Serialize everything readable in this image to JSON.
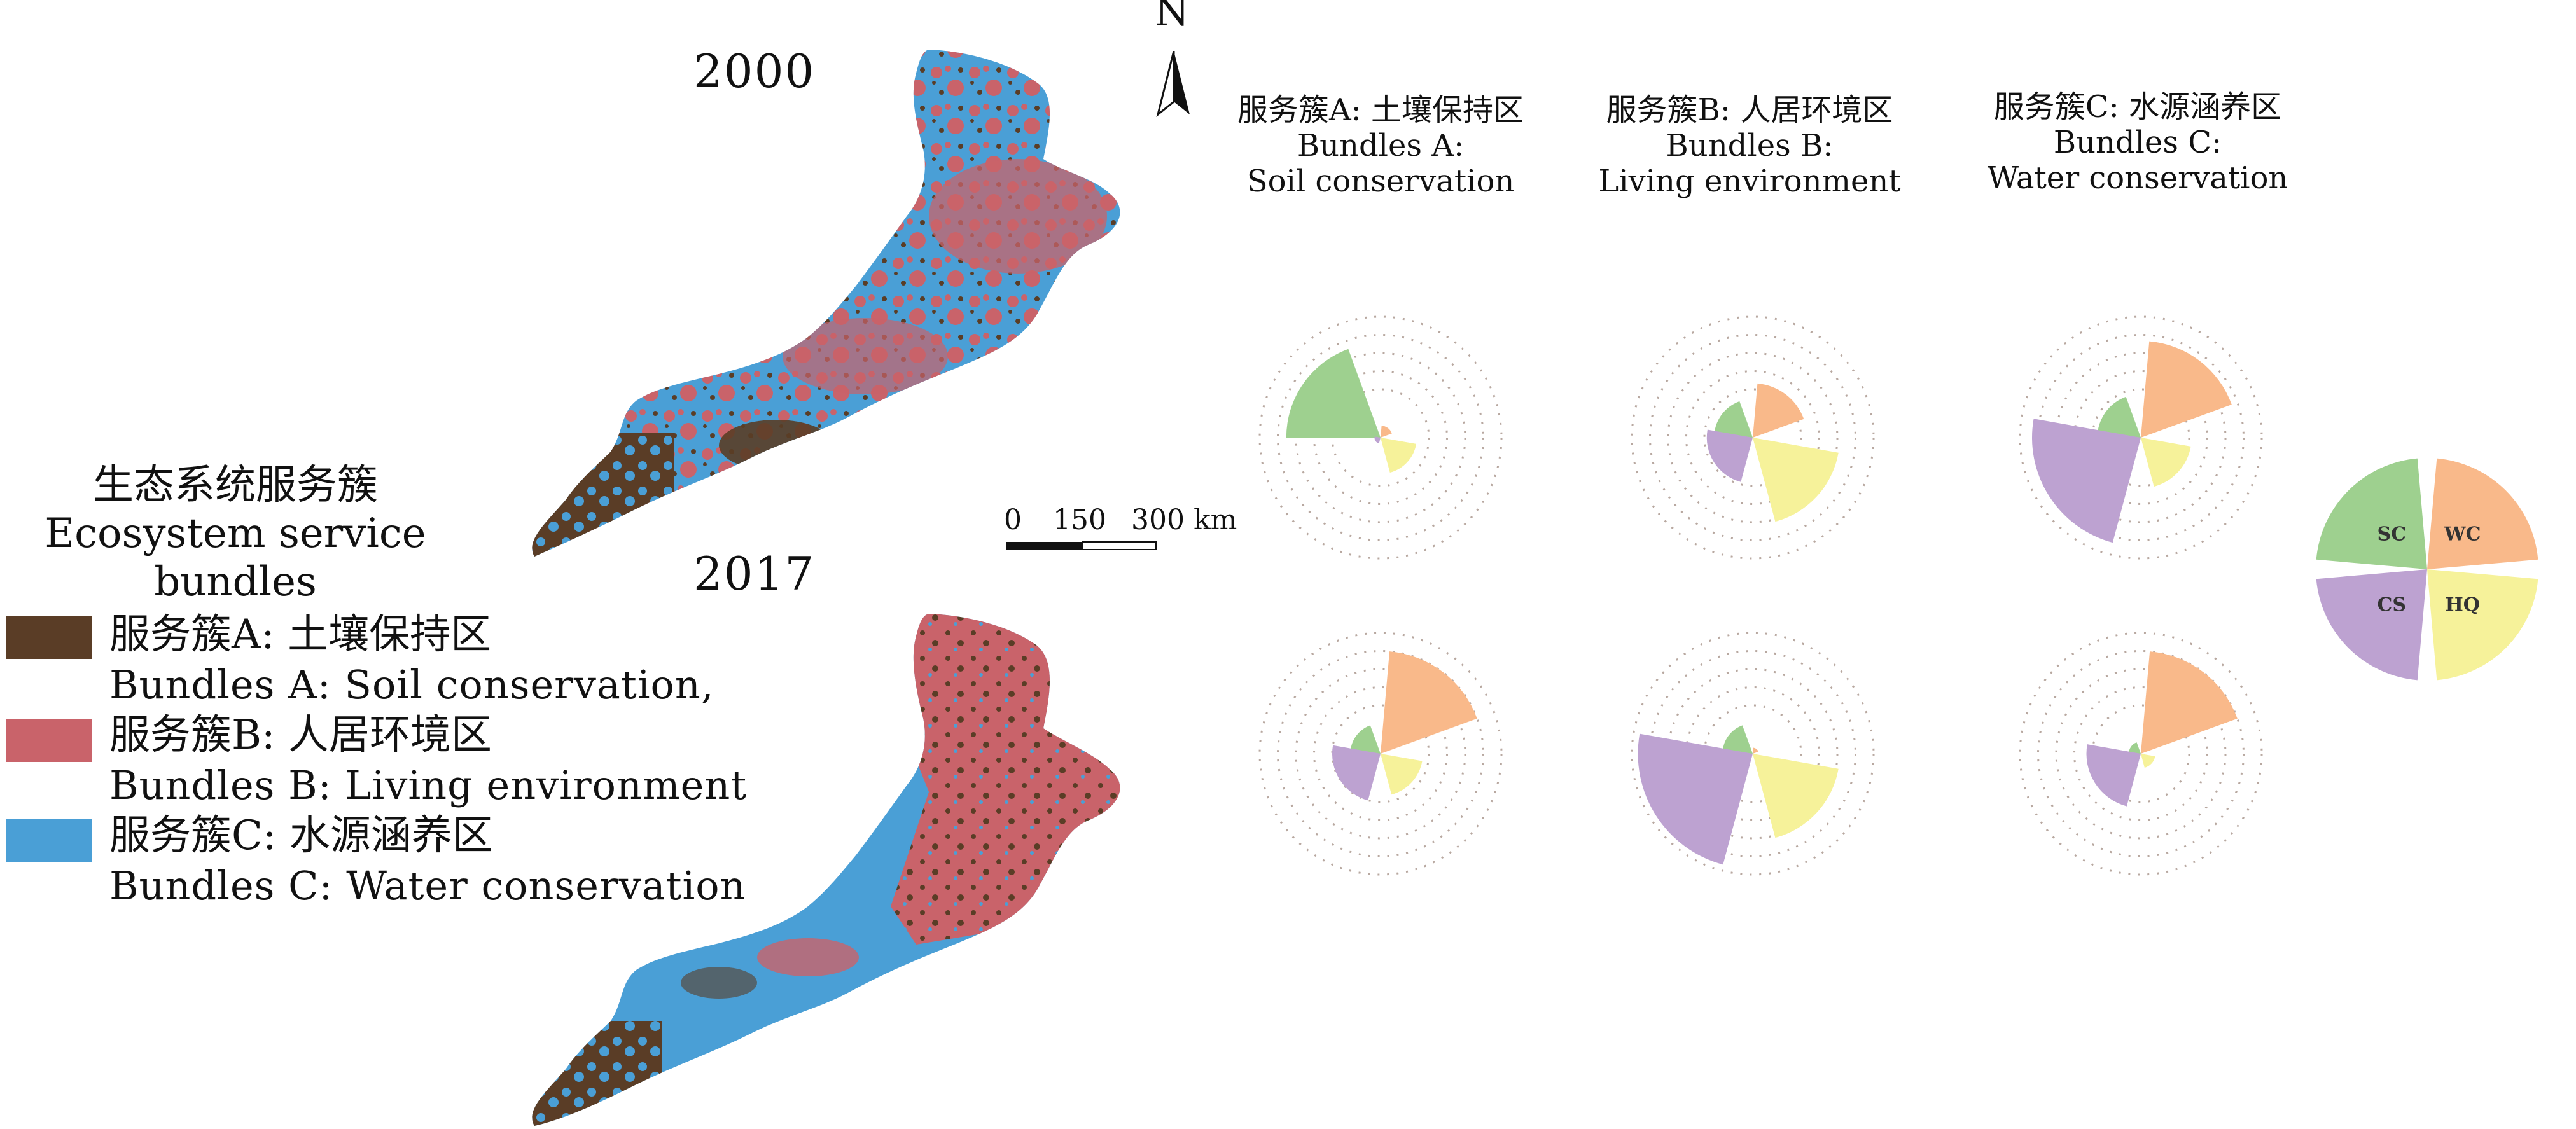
{
  "maps": {
    "top_year": "2000",
    "bottom_year": "2017",
    "north_label": "N",
    "scale": {
      "ticks": [
        "0",
        "150",
        "300 km"
      ]
    },
    "colors": {
      "bundle_a": "#5a3d26",
      "bundle_b": "#c9636a",
      "bundle_c": "#4a9fd6"
    }
  },
  "legend": {
    "title_cn": "生态系统服务簇",
    "title_en_1": "Ecosystem service",
    "title_en_2": "bundles",
    "items": [
      {
        "cn": "服务簇A: 土壤保持区",
        "en": "Bundles  A: Soil conservation,"
      },
      {
        "cn": "服务簇B: 人居环境区",
        "en": "Bundles  B: Living environment"
      },
      {
        "cn": "服务簇C: 水源涵养区",
        "en": "Bundles  C: Water conservation"
      }
    ]
  },
  "columns": [
    {
      "cn": "服务簇A: 土壤保持区",
      "en1": "Bundles  A:",
      "en2": "Soil conservation"
    },
    {
      "cn": "服务簇B: 人居环境区",
      "en1": "Bundles  B:",
      "en2": "Living environment"
    },
    {
      "cn": "服务簇C: 水源涵养区",
      "en1": "Bundles  C:",
      "en2": "Water conservation"
    }
  ],
  "chart_data": {
    "type": "rose",
    "sectors": [
      "SC",
      "WC",
      "HQ",
      "CS"
    ],
    "sector_colors": [
      "#9ed08f",
      "#f9b98a",
      "#f6f29a",
      "#bda2d1"
    ],
    "key_labels": [
      "SC",
      "WC",
      "HQ",
      "CS"
    ],
    "rows": [
      "2000",
      "2017"
    ],
    "series": [
      {
        "bundle": "A",
        "year": "2000",
        "values": [
          0.78,
          0.1,
          0.3,
          0.05
        ]
      },
      {
        "bundle": "B",
        "year": "2000",
        "values": [
          0.32,
          0.45,
          0.72,
          0.38
        ]
      },
      {
        "bundle": "C",
        "year": "2000",
        "values": [
          0.36,
          0.8,
          0.42,
          0.9
        ]
      },
      {
        "bundle": "A",
        "year": "2017",
        "values": [
          0.25,
          0.85,
          0.35,
          0.4
        ]
      },
      {
        "bundle": "B",
        "year": "2017",
        "values": [
          0.25,
          0.05,
          0.72,
          0.95
        ]
      },
      {
        "bundle": "C",
        "year": "2017",
        "values": [
          0.1,
          0.85,
          0.12,
          0.45
        ]
      }
    ]
  }
}
